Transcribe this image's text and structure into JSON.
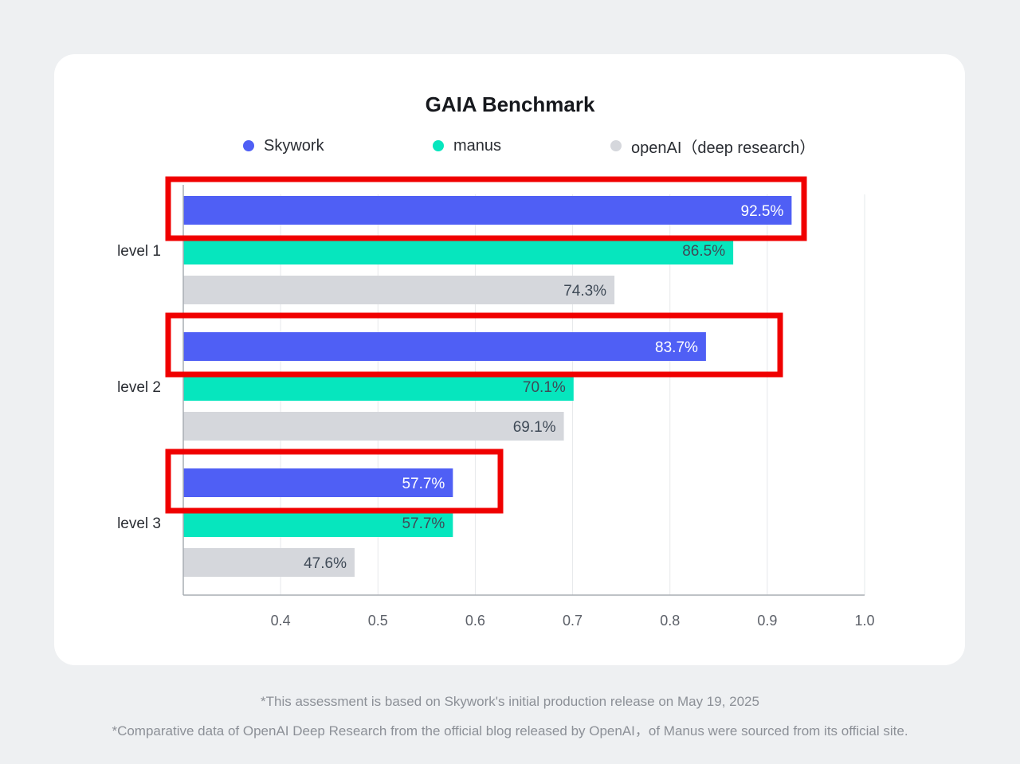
{
  "chart_data": {
    "type": "bar",
    "orientation": "horizontal",
    "title": "GAIA Benchmark",
    "categories": [
      "level 1",
      "level 2",
      "level 3"
    ],
    "series": [
      {
        "name": "Skywork",
        "color": "#4f5ff5",
        "label_color": "#ffffff",
        "values": [
          0.925,
          0.837,
          0.577
        ],
        "labels": [
          "92.5%",
          "83.7%",
          "57.7%"
        ],
        "highlighted": true
      },
      {
        "name": "manus",
        "color": "#06e6be",
        "label_color": "#3f4a57",
        "values": [
          0.865,
          0.701,
          0.577
        ],
        "labels": [
          "86.5%",
          "70.1%",
          "57.7%"
        ]
      },
      {
        "name": "openAI（deep research）",
        "color": "#d5d7dc",
        "label_color": "#3f4a57",
        "values": [
          0.743,
          0.691,
          0.476
        ],
        "labels": [
          "74.3%",
          "69.1%",
          "47.6%"
        ]
      }
    ],
    "x_ticks": [
      0.4,
      0.5,
      0.6,
      0.7,
      0.8,
      0.9,
      1.0
    ],
    "x_tick_labels": [
      "0.4",
      "0.5",
      "0.6",
      "0.7",
      "0.8",
      "0.9",
      "1.0"
    ],
    "xlim": [
      0.3,
      1.0
    ],
    "grid": true,
    "legend_position": "top-center",
    "highlight_color": "#f00000"
  },
  "footnotes": [
    "*This assessment is based on Skywork's initial production release on May 19, 2025",
    "*Comparative data of OpenAI Deep Research from the official blog released by OpenAI，of Manus were sourced from its official site."
  ]
}
